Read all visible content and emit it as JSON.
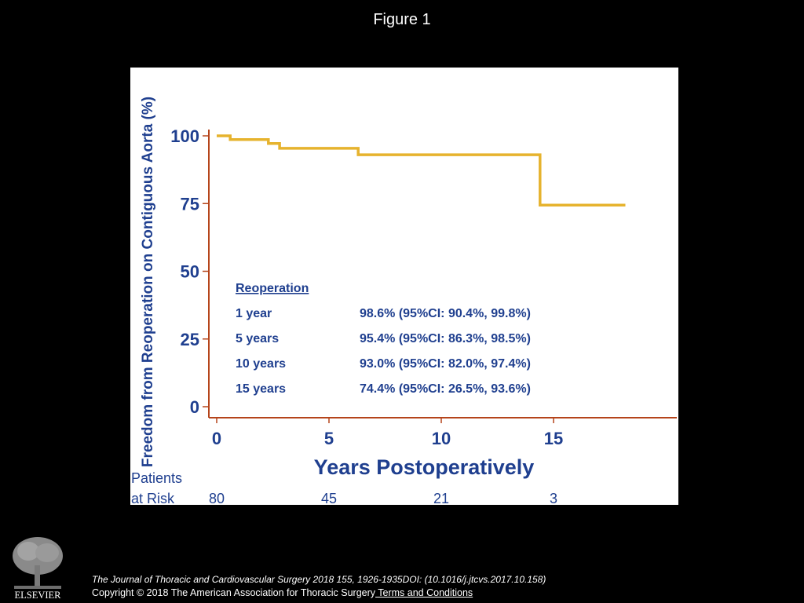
{
  "page": {
    "figure_title": "Figure 1",
    "citation": "The Journal of Thoracic and Cardiovascular Surgery 2018 155, 1926-1935DOI: (10.1016/j.jtcvs.2017.10.158)",
    "copyright": "Copyright © 2018 The American Association for Thoracic Surgery",
    "terms_link": " Terms and Conditions",
    "logo_text": "ELSEVIER",
    "logo_icon": "elsevier-tree-logo"
  },
  "colors": {
    "background": "#000000",
    "panel": "#ffffff",
    "axis": "#b5441a",
    "curve": "#e6b32e",
    "text_blue": "#1f3f8f"
  },
  "chart_data": {
    "type": "line",
    "step": true,
    "title": "",
    "xlabel": "Years Postoperatively",
    "ylabel": "Freedom from Reoperation on Contiguous Aorta (%)",
    "xlim": [
      0,
      20
    ],
    "ylim": [
      0,
      100
    ],
    "x_ticks": [
      "0",
      "5",
      "10",
      "15"
    ],
    "x_tick_values": [
      0,
      5,
      10,
      15
    ],
    "y_ticks": [
      "100",
      "75",
      "50",
      "25",
      "0"
    ],
    "y_tick_values": [
      100,
      75,
      50,
      25,
      0
    ],
    "series": [
      {
        "x": [
          0,
          0.6,
          0.6,
          2.3,
          2.3,
          2.8,
          2.8,
          6.3,
          6.3,
          14.4,
          14.4,
          18.2
        ],
        "y": [
          100,
          100,
          98.6,
          98.6,
          97.2,
          97.2,
          95.4,
          95.4,
          93.0,
          93.0,
          74.4,
          74.4
        ]
      }
    ],
    "annotation_table": {
      "heading": "Reoperation",
      "rows": [
        {
          "label": "1 year",
          "value": "98.6% (95%CI:  90.4%, 99.8%)"
        },
        {
          "label": "5 years",
          "value": "95.4% (95%CI:  86.3%, 98.5%)"
        },
        {
          "label": "10 years",
          "value": "93.0% (95%CI:  82.0%, 97.4%)"
        },
        {
          "label": "15 years",
          "value": "74.4% (95%CI:  26.5%, 93.6%)"
        }
      ]
    },
    "patients_at_risk": {
      "label_line1": "Patients",
      "label_line2": "at Risk",
      "x_values": [
        0,
        5,
        10,
        15
      ],
      "counts": [
        "80",
        "45",
        "21",
        "3"
      ]
    }
  }
}
